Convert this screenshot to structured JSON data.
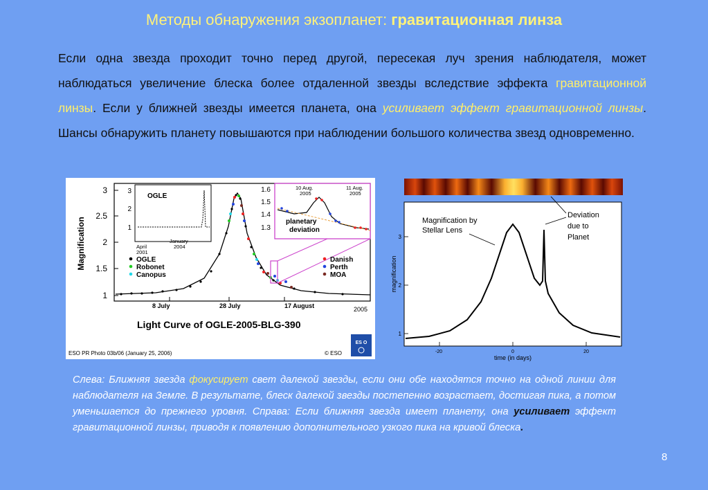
{
  "title": {
    "part1": "Методы обнаружения экзопланет: ",
    "part2": "гравитационная линза"
  },
  "paragraph": {
    "p1": "Если одна звезда проходит точно перед другой, пересекая луч зрения наблюдателя, может наблюдаться увеличение блеска более отдаленной звезды вследствие эффекта ",
    "p2": "гравитационной линзы",
    "p3": ". Если у ближней звезды имеется планета, она ",
    "p4": "усиливает эффект гравитационной линзы",
    "p5": ". Шансы обнаружить планету повышаются при наблюдении большого количества звезд одновременно."
  },
  "left_figure": {
    "ylabel": "Magnification",
    "main_ticks": [
      "3",
      "2.5",
      "2",
      "1.5",
      "1"
    ],
    "inset1_label": "OGLE",
    "inset1_ticks": [
      "3",
      "2",
      "1"
    ],
    "inset1_x": [
      "April",
      "2001",
      "January",
      "2004"
    ],
    "inset2_ticks": [
      "1.6",
      "1.5",
      "1.4",
      "1.3"
    ],
    "inset2_dates": [
      "10 Aug.",
      "2005",
      "11 Aug.",
      "2005"
    ],
    "inset2_label": [
      "planetary",
      "deviation"
    ],
    "legend_left": [
      "OGLE",
      "Robonet",
      "Canopus"
    ],
    "legend_right": [
      "Danish",
      "Perth",
      "MOA"
    ],
    "legend_colors": {
      "OGLE": "#000000",
      "Robonet": "#22cc22",
      "Canopus": "#22d8e8",
      "Danish": "#ee2222",
      "Perth": "#2244dd",
      "MOA": "#7a2a22"
    },
    "x_ticks": [
      "8 July",
      "28 July",
      "17 August",
      "2005"
    ],
    "chart_title": "Light Curve of OGLE-2005-BLG-390",
    "credit": "ESO PR Photo 03b/06 (January 25, 2006)",
    "copyright": "© ESO",
    "logo_text": "ES O"
  },
  "right_figure": {
    "ylabel": "magnification",
    "y_ticks": [
      "3",
      "2",
      "1"
    ],
    "x_ticks": [
      "-20",
      "0",
      "20"
    ],
    "xlabel": "time (in days)",
    "label_stellar": [
      "Magnification by",
      "Stellar Lens"
    ],
    "label_deviation": [
      "Deviation",
      "due to",
      "Planet"
    ]
  },
  "caption": {
    "c1": "Слева: Ближняя звезда ",
    "c2": "фокусирует",
    "c3": " свет далекой звезды, если они обе находятся точно на одной линии для наблюдателя на Земле. В результате, блеск далекой звезды постепенно возрастает, достигая пика, а потом уменьшается до прежнего уровня. Справа: Если ближняя звезда имеет планету, она ",
    "c4": "усиливает",
    "c5": " эффект гравитационной линзы, приводя к появлению дополнительного узкого пика на кривой блеска",
    "c6": "."
  },
  "page_number": "8"
}
